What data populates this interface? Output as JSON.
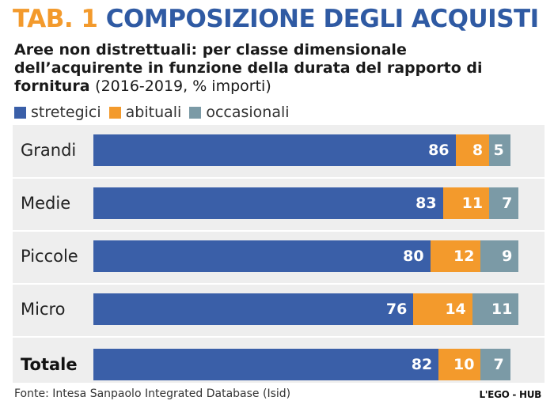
{
  "header": {
    "title_tab": "TAB. 1",
    "title_main": "COMPOSIZIONE DEGLI ACQUISTI",
    "subtitle": "Aree non distrettuali: per classe dimensionale dell’acquirente in funzione della durata del rapporto di fornitura",
    "subtitle_note": "(2016-2019, % importi)"
  },
  "legend": [
    {
      "label": "stretegici",
      "color": "#3a5fa8"
    },
    {
      "label": "abituali",
      "color": "#f39a2c"
    },
    {
      "label": "occasionali",
      "color": "#7b9aa6"
    }
  ],
  "footer": {
    "source": "Fonte: Intesa Sanpaolo Integrated Database (Isid)",
    "logo": "L'EGO - HUB"
  },
  "chart_data": {
    "type": "bar",
    "orientation": "horizontal",
    "stacked": true,
    "title": "COMPOSIZIONE DEGLI ACQUISTI",
    "categories": [
      "Grandi",
      "Medie",
      "Piccole",
      "Micro",
      "Totale"
    ],
    "series": [
      {
        "name": "stretegici",
        "color": "#3a5fa8",
        "values": [
          86,
          83,
          80,
          76,
          82
        ]
      },
      {
        "name": "abituali",
        "color": "#f39a2c",
        "values": [
          8,
          11,
          12,
          14,
          10
        ]
      },
      {
        "name": "occasionali",
        "color": "#7b9aa6",
        "values": [
          5,
          7,
          9,
          11,
          7
        ]
      }
    ],
    "xlim": [
      0,
      100
    ],
    "grid": false,
    "legend_position": "top-left"
  }
}
